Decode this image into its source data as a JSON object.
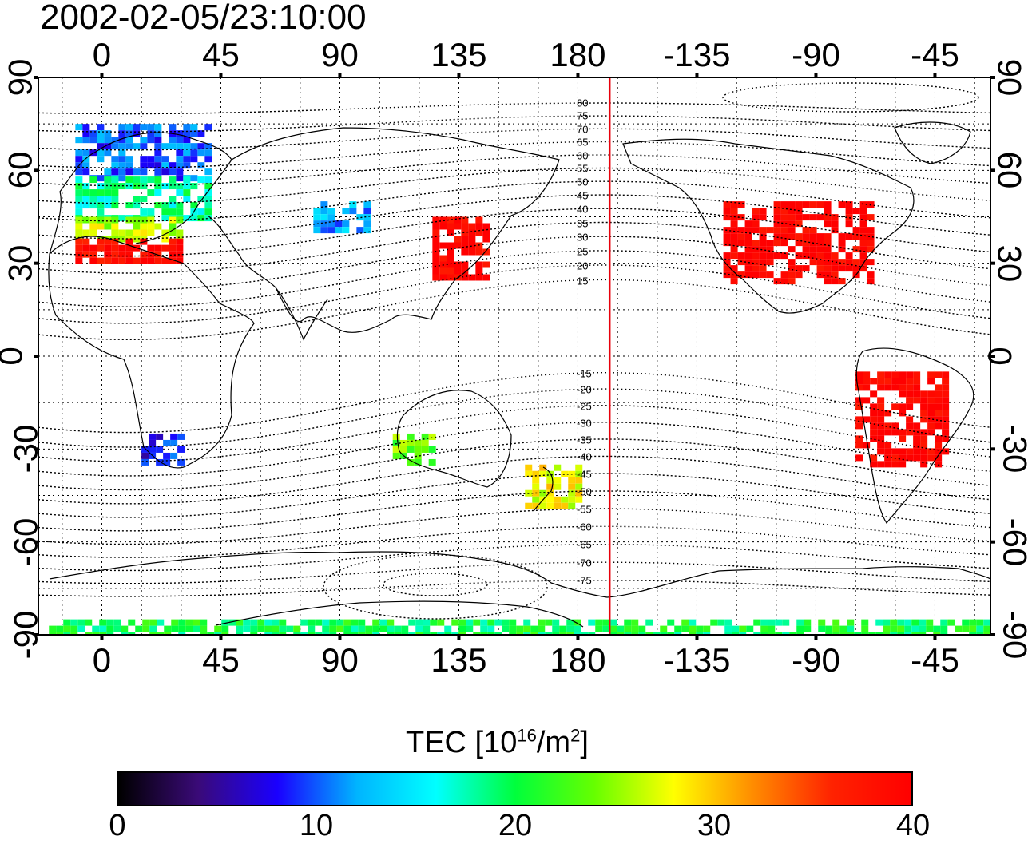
{
  "header": {
    "title": "2002-02-05/23:10:00"
  },
  "axes": {
    "top_ticks": [
      "0",
      "45",
      "90",
      "135",
      "180",
      "-135",
      "-90",
      "-45"
    ],
    "bottom_ticks": [
      "0",
      "45",
      "90",
      "135",
      "180",
      "-135",
      "-90",
      "-45"
    ],
    "left_ticks": [
      "90",
      "60",
      "30",
      "0",
      "-30",
      "-60",
      "-90"
    ],
    "right_ticks": [
      "90",
      "60",
      "30",
      "0",
      "-30",
      "-60",
      "-90"
    ],
    "longitude_ticks_deg": [
      0,
      45,
      90,
      135,
      180,
      225,
      270,
      315
    ],
    "latitude_ticks_deg": [
      90,
      60,
      30,
      0,
      -30,
      -60,
      -90
    ],
    "longitude_range_deg": [
      -24,
      336
    ],
    "latitude_range_deg": [
      -90,
      90
    ],
    "grid": true,
    "grid_style": "dotted"
  },
  "contour_labels": [
    "80",
    "75",
    "70",
    "65",
    "60",
    "55",
    "50",
    "45",
    "40",
    "35",
    "30",
    "25",
    "20",
    "15",
    "-15",
    "-20",
    "-25",
    "-30",
    "-35",
    "-40",
    "-45",
    "-50",
    "-55",
    "-60",
    "-65",
    "-70",
    "-75"
  ],
  "contour_levels": [
    80,
    75,
    70,
    65,
    60,
    55,
    50,
    45,
    40,
    35,
    30,
    25,
    20,
    15,
    -15,
    -20,
    -25,
    -30,
    -35,
    -40,
    -45,
    -50,
    -55,
    -60,
    -65,
    -70,
    -75
  ],
  "terminator": {
    "longitude_deg": 192,
    "color": "#e8000b"
  },
  "colorbar": {
    "title_main": "TEC  [10",
    "title_exp": "16",
    "title_mid": "/m",
    "title_exp2": "2",
    "title_end": "]",
    "ticks": [
      "0",
      "10",
      "20",
      "30",
      "40"
    ],
    "min": 0,
    "max": 40,
    "stops": [
      "#000000",
      "#3a0a78",
      "#1a00ff",
      "#00b4ff",
      "#00ffff",
      "#00ff3c",
      "#66ff00",
      "#ffff00",
      "#ff8c00",
      "#ff2200",
      "#ff0000"
    ]
  },
  "chart_data": {
    "type": "heatmap",
    "title": "2002-02-05/23:10:00",
    "colorbar_label": "TEC [10^16/m^2]",
    "value_range": [
      0,
      40
    ],
    "x_unit": "longitude (deg)",
    "y_unit": "latitude (deg)",
    "regions": [
      {
        "lon": [
          -10,
          40
        ],
        "lat": [
          58,
          75
        ],
        "tec": 10
      },
      {
        "lon": [
          -10,
          40
        ],
        "lat": [
          45,
          58
        ],
        "tec": 18
      },
      {
        "lon": [
          -10,
          30
        ],
        "lat": [
          38,
          45
        ],
        "tec": 26
      },
      {
        "lon": [
          -10,
          30
        ],
        "lat": [
          30,
          38
        ],
        "tec": 39
      },
      {
        "lon": [
          80,
          100
        ],
        "lat": [
          40,
          50
        ],
        "tec": 12
      },
      {
        "lon": [
          125,
          145
        ],
        "lat": [
          25,
          45
        ],
        "tec": 40
      },
      {
        "lon": [
          235,
          290
        ],
        "lat": [
          25,
          50
        ],
        "tec": 40
      },
      {
        "lon": [
          285,
          320
        ],
        "lat": [
          -35,
          -5
        ],
        "tec": 40
      },
      {
        "lon": [
          160,
          180
        ],
        "lat": [
          -48,
          -35
        ],
        "tec": 28
      },
      {
        "lon": [
          15,
          30
        ],
        "lat": [
          -35,
          -25
        ],
        "tec": 8
      },
      {
        "lon": [
          110,
          125
        ],
        "lat": [
          -35,
          -25
        ],
        "tec": 24
      },
      {
        "lon": [
          -20,
          335
        ],
        "lat": [
          -90,
          -85
        ],
        "tec": 20
      }
    ]
  }
}
